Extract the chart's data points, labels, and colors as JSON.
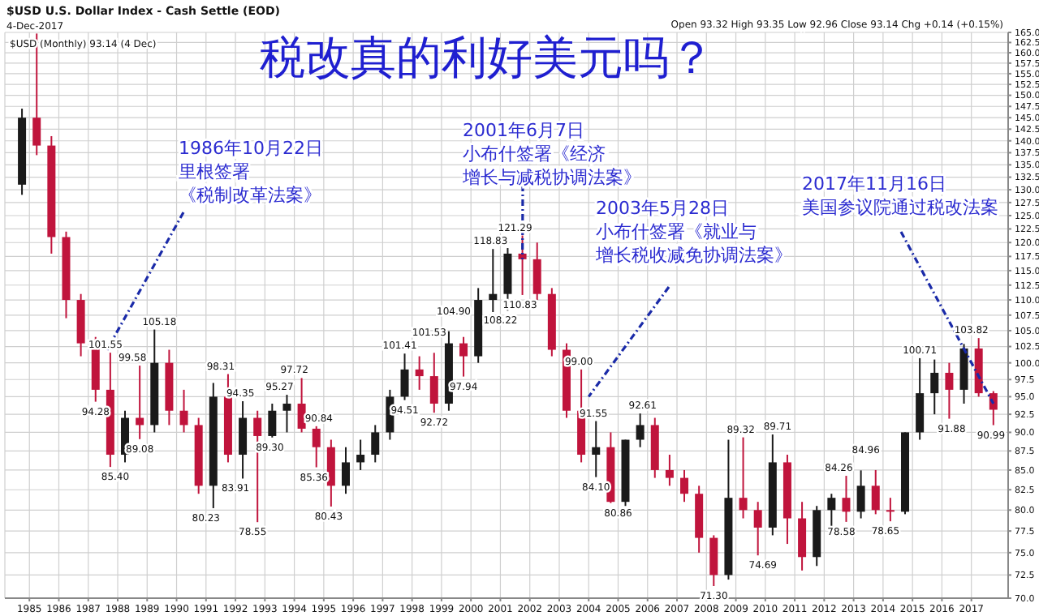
{
  "chart_data": {
    "type": "candlestick",
    "title": "税改真的利好美元吗？",
    "subtitle": "$USD U.S. Dollar Index - Cash Settle (EOD)",
    "x": [
      "1984-10",
      "1985-04",
      "1985-10",
      "1986-04",
      "1986-10",
      "1987-04",
      "1987-10",
      "1988-04",
      "1988-10",
      "1989-04",
      "1989-10",
      "1990-04",
      "1990-10",
      "1991-04",
      "1991-10",
      "1992-04",
      "1992-10",
      "1993-04",
      "1993-10",
      "1994-04",
      "1994-10",
      "1995-04",
      "1995-10",
      "1996-04",
      "1996-10",
      "1997-04",
      "1997-10",
      "1998-04",
      "1998-10",
      "1999-04",
      "1999-10",
      "2000-04",
      "2000-10",
      "2001-04",
      "2001-10",
      "2002-04",
      "2002-10",
      "2003-04",
      "2003-10",
      "2004-04",
      "2004-10",
      "2005-04",
      "2005-10",
      "2006-04",
      "2006-10",
      "2007-04",
      "2007-10",
      "2008-04",
      "2008-10",
      "2009-04",
      "2009-10",
      "2010-04",
      "2010-10",
      "2011-04",
      "2011-10",
      "2012-04",
      "2012-10",
      "2013-04",
      "2013-10",
      "2014-04",
      "2014-10",
      "2015-04",
      "2015-10",
      "2016-04",
      "2016-10",
      "2017-04",
      "2017-10"
    ],
    "ohlc": [
      [
        131,
        147,
        129,
        145
      ],
      [
        145,
        164.72,
        137,
        139
      ],
      [
        139,
        141,
        118,
        121
      ],
      [
        121,
        122,
        107,
        110
      ],
      [
        110,
        111,
        101,
        103
      ],
      [
        103,
        104,
        94.28,
        96
      ],
      [
        96,
        101.55,
        85.4,
        87
      ],
      [
        87,
        93,
        86,
        92
      ],
      [
        92,
        99.58,
        89.08,
        91
      ],
      [
        91,
        105.18,
        90,
        100
      ],
      [
        100,
        102,
        91,
        93
      ],
      [
        93,
        96,
        90,
        91
      ],
      [
        91,
        92,
        82,
        83
      ],
      [
        83,
        97,
        80.23,
        95
      ],
      [
        95,
        98.31,
        86,
        87
      ],
      [
        87,
        94.35,
        83.91,
        92
      ],
      [
        92,
        93,
        78.55,
        89.5
      ],
      [
        89.5,
        94,
        89.3,
        93
      ],
      [
        93,
        95.27,
        90,
        94
      ],
      [
        94,
        97.72,
        90,
        90.5
      ],
      [
        90.5,
        90.84,
        85.36,
        88
      ],
      [
        88,
        89,
        80.43,
        83
      ],
      [
        83,
        88,
        82,
        86
      ],
      [
        86,
        89,
        85,
        87
      ],
      [
        87,
        91,
        86,
        90
      ],
      [
        90,
        96,
        89,
        95
      ],
      [
        95,
        101.41,
        94.51,
        99
      ],
      [
        99,
        101,
        96,
        98
      ],
      [
        98,
        101.53,
        92.72,
        94
      ],
      [
        94,
        104.9,
        93,
        103
      ],
      [
        103,
        104,
        97.94,
        101
      ],
      [
        101,
        112,
        100,
        110
      ],
      [
        110,
        118.83,
        108,
        111
      ],
      [
        111,
        119,
        108.22,
        118
      ],
      [
        118,
        121.29,
        110.83,
        117
      ],
      [
        117,
        120,
        110,
        111
      ],
      [
        111,
        112,
        101,
        102
      ],
      [
        102,
        103,
        92,
        93
      ],
      [
        93,
        99,
        86,
        87
      ],
      [
        87,
        91.55,
        84.1,
        88
      ],
      [
        88,
        90,
        80.86,
        81
      ],
      [
        81,
        89,
        80.5,
        89
      ],
      [
        89,
        92.61,
        88,
        91
      ],
      [
        91,
        92,
        84,
        85
      ],
      [
        85,
        87,
        83,
        84
      ],
      [
        84,
        85,
        81,
        82
      ],
      [
        82,
        83,
        75,
        76.7
      ],
      [
        76.7,
        77,
        71.3,
        72.5
      ],
      [
        72.5,
        89,
        72,
        81.5
      ],
      [
        81.5,
        89.32,
        79,
        80
      ],
      [
        80,
        81,
        74.69,
        77.9
      ],
      [
        77.9,
        89.71,
        77,
        86
      ],
      [
        86,
        87,
        76,
        79
      ],
      [
        79,
        81,
        73,
        74.5
      ],
      [
        74.5,
        80.5,
        73.5,
        80
      ],
      [
        80,
        82,
        78,
        81.5
      ],
      [
        81.5,
        84.26,
        78.58,
        79.8
      ],
      [
        79.8,
        84.96,
        79,
        83
      ],
      [
        83,
        85,
        79.5,
        80
      ],
      [
        80,
        81.5,
        78.65,
        79.8
      ],
      [
        79.8,
        90,
        79.5,
        90
      ],
      [
        90,
        100.71,
        89,
        95.5
      ],
      [
        95.5,
        100.5,
        92.5,
        98.5
      ],
      [
        98.5,
        100,
        91.88,
        96
      ],
      [
        96,
        102.9,
        94,
        102.2
      ],
      [
        102.2,
        103.82,
        95,
        95.5
      ],
      [
        95.5,
        95.8,
        90.99,
        93.14
      ]
    ],
    "colors": [
      "#1a1a1a",
      "#c0143c",
      "#c0143c",
      "#c0143c",
      "#c0143c",
      "#c0143c",
      "#c0143c",
      "#1a1a1a",
      "#c0143c",
      "#1a1a1a",
      "#c0143c",
      "#c0143c",
      "#c0143c",
      "#1a1a1a",
      "#c0143c",
      "#1a1a1a",
      "#c0143c",
      "#1a1a1a",
      "#1a1a1a",
      "#c0143c",
      "#c0143c",
      "#c0143c",
      "#1a1a1a",
      "#1a1a1a",
      "#1a1a1a",
      "#1a1a1a",
      "#1a1a1a",
      "#c0143c",
      "#c0143c",
      "#1a1a1a",
      "#c0143c",
      "#1a1a1a",
      "#1a1a1a",
      "#1a1a1a",
      "#c0143c",
      "#c0143c",
      "#c0143c",
      "#c0143c",
      "#c0143c",
      "#1a1a1a",
      "#c0143c",
      "#1a1a1a",
      "#1a1a1a",
      "#c0143c",
      "#c0143c",
      "#c0143c",
      "#c0143c",
      "#c0143c",
      "#1a1a1a",
      "#c0143c",
      "#c0143c",
      "#1a1a1a",
      "#c0143c",
      "#c0143c",
      "#1a1a1a",
      "#1a1a1a",
      "#c0143c",
      "#1a1a1a",
      "#c0143c",
      "#c0143c",
      "#1a1a1a",
      "#1a1a1a",
      "#1a1a1a",
      "#c0143c",
      "#1a1a1a",
      "#c0143c",
      "#c0143c"
    ],
    "xlim": [
      "1984-03",
      "2018-04"
    ],
    "xticks": [
      "1985",
      "1986",
      "1987",
      "1988",
      "1989",
      "1990",
      "1991",
      "1992",
      "1993",
      "1994",
      "1995",
      "1996",
      "1997",
      "1998",
      "1999",
      "2000",
      "2001",
      "2002",
      "2003",
      "2004",
      "2005",
      "2006",
      "2007",
      "2008",
      "2009",
      "2010",
      "2011",
      "2012",
      "2013",
      "2014",
      "2015",
      "2016",
      "2017"
    ],
    "ylim": [
      70,
      165
    ],
    "log": true,
    "yticks": [
      {
        "value": 70,
        "label": "70.0"
      },
      {
        "value": 72.5,
        "label": "72.5"
      },
      {
        "value": 75,
        "label": "75.0"
      },
      {
        "value": 77.5,
        "label": "77.5"
      },
      {
        "value": 80,
        "label": "80.0"
      },
      {
        "value": 82.5,
        "label": "82.5"
      },
      {
        "value": 85,
        "label": "85.0"
      },
      {
        "value": 87.5,
        "label": "87.5"
      },
      {
        "value": 90,
        "label": "90.0"
      },
      {
        "value": 92.5,
        "label": "92.5"
      },
      {
        "value": 95,
        "label": "95.0"
      },
      {
        "value": 97.5,
        "label": "97.5"
      },
      {
        "value": 100,
        "label": "100.0"
      },
      {
        "value": 102.5,
        "label": "102.5"
      },
      {
        "value": 105,
        "label": "105.0"
      },
      {
        "value": 107.5,
        "label": "107.5"
      },
      {
        "value": 110,
        "label": "110.0"
      },
      {
        "value": 112.5,
        "label": "112.5"
      },
      {
        "value": 115,
        "label": "115.0"
      },
      {
        "value": 117.5,
        "label": "117.5"
      },
      {
        "value": 120,
        "label": "120.0"
      },
      {
        "value": 122.5,
        "label": "122.5"
      },
      {
        "value": 125,
        "label": "125.0"
      },
      {
        "value": 127.5,
        "label": "127.5"
      },
      {
        "value": 130,
        "label": "130.0"
      },
      {
        "value": 132.5,
        "label": "132.5"
      },
      {
        "value": 135,
        "label": "135.0"
      },
      {
        "value": 137.5,
        "label": "137.5"
      },
      {
        "value": 140,
        "label": "140.0"
      },
      {
        "value": 142.5,
        "label": "142.5"
      },
      {
        "value": 145,
        "label": "145.0"
      },
      {
        "value": 147.5,
        "label": "147.5"
      },
      {
        "value": 150,
        "label": "150.0"
      },
      {
        "value": 152.5,
        "label": "152.5"
      },
      {
        "value": 155,
        "label": "155.0"
      },
      {
        "value": 157.5,
        "label": "157.5"
      },
      {
        "value": 160,
        "label": "160.0"
      },
      {
        "value": 162.5,
        "label": "162.5"
      },
      {
        "value": 165,
        "label": "165.0"
      }
    ],
    "grid": true,
    "annotations": [
      {
        "text": "1986年10月22日里根签署《税制改革法案》",
        "x": "1987-08",
        "y": 101.55
      },
      {
        "text": "2001年6月7日小布什签署《经济增长与减税协调法案》",
        "x": "2001-10",
        "y": 117
      },
      {
        "text": "2003年5月28日小布什签署《就业与增长税收减免协调法案》",
        "x": "2004-01",
        "y": 95
      },
      {
        "text": "2017年11月16日美国参议院通过税改法案",
        "x": "2017-10",
        "y": 94
      },
      {
        "text": "101.55",
        "x": "1987-08",
        "y": 101.55
      },
      {
        "text": "94.28",
        "x": "1987-04",
        "y": 94.28
      },
      {
        "text": "85.40",
        "x": "1987-12",
        "y": 85.4
      },
      {
        "text": "99.58",
        "x": "1988-07",
        "y": 99.58
      },
      {
        "text": "89.08",
        "x": "1988-10",
        "y": 89.08
      },
      {
        "text": "105.18",
        "x": "1989-06",
        "y": 105.18
      },
      {
        "text": "80.23",
        "x": "1991-01",
        "y": 80.23
      },
      {
        "text": "98.31",
        "x": "1991-07",
        "y": 98.31
      },
      {
        "text": "83.91",
        "x": "1992-01",
        "y": 83.91
      },
      {
        "text": "94.35",
        "x": "1992-03",
        "y": 94.35
      },
      {
        "text": "78.55",
        "x": "1992-08",
        "y": 78.55
      },
      {
        "text": "89.30",
        "x": "1993-03",
        "y": 89.3
      },
      {
        "text": "95.27",
        "x": "1993-07",
        "y": 95.27
      },
      {
        "text": "97.72",
        "x": "1994-01",
        "y": 97.72
      },
      {
        "text": "85.36",
        "x": "1994-09",
        "y": 85.36
      },
      {
        "text": "90.84",
        "x": "1994-11",
        "y": 90.84
      },
      {
        "text": "80.43",
        "x": "1995-03",
        "y": 80.43
      },
      {
        "text": "101.41",
        "x": "1997-08",
        "y": 101.41
      },
      {
        "text": "94.51",
        "x": "1997-10",
        "y": 94.51
      },
      {
        "text": "101.53",
        "x": "1998-08",
        "y": 101.53
      },
      {
        "text": "92.72",
        "x": "1998-10",
        "y": 92.72
      },
      {
        "text": "104.90",
        "x": "1999-06",
        "y": 104.9
      },
      {
        "text": "97.94",
        "x": "1999-10",
        "y": 97.94
      },
      {
        "text": "118.83",
        "x": "2000-09",
        "y": 118.83
      },
      {
        "text": "108.22",
        "x": "2001-01",
        "y": 108.22
      },
      {
        "text": "121.29",
        "x": "2001-07",
        "y": 121.29
      },
      {
        "text": "110.83",
        "x": "2001-09",
        "y": 110.83
      },
      {
        "text": "99.00",
        "x": "2003-09",
        "y": 99
      },
      {
        "text": "91.55",
        "x": "2004-03",
        "y": 91.55
      },
      {
        "text": "84.10",
        "x": "2004-04",
        "y": 84.1
      },
      {
        "text": "80.86",
        "x": "2005-01",
        "y": 80.86
      },
      {
        "text": "92.61",
        "x": "2005-11",
        "y": 92.61
      },
      {
        "text": "71.30",
        "x": "2008-04",
        "y": 71.3
      },
      {
        "text": "89.32",
        "x": "2009-03",
        "y": 89.32
      },
      {
        "text": "74.69",
        "x": "2009-12",
        "y": 74.69
      },
      {
        "text": "89.71",
        "x": "2010-06",
        "y": 89.71
      },
      {
        "text": "84.26",
        "x": "2012-07",
        "y": 84.26
      },
      {
        "text": "78.58",
        "x": "2012-08",
        "y": 78.58
      },
      {
        "text": "84.96",
        "x": "2013-06",
        "y": 84.96
      },
      {
        "text": "78.65",
        "x": "2014-02",
        "y": 78.65
      },
      {
        "text": "100.71",
        "x": "2015-04",
        "y": 100.71
      },
      {
        "text": "91.88",
        "x": "2016-05",
        "y": 91.88
      },
      {
        "text": "103.82",
        "x": "2017-01",
        "y": 103.82
      },
      {
        "text": "90.99",
        "x": "2017-09",
        "y": 90.99
      },
      "4-Dec-2017",
      "$USD (Monthly) 93.14 (4 Dec)",
      "Open 93.32 High 93.35 Low 92.96 Close 93.14 Chg +0.14 (+0.15%)"
    ]
  }
}
